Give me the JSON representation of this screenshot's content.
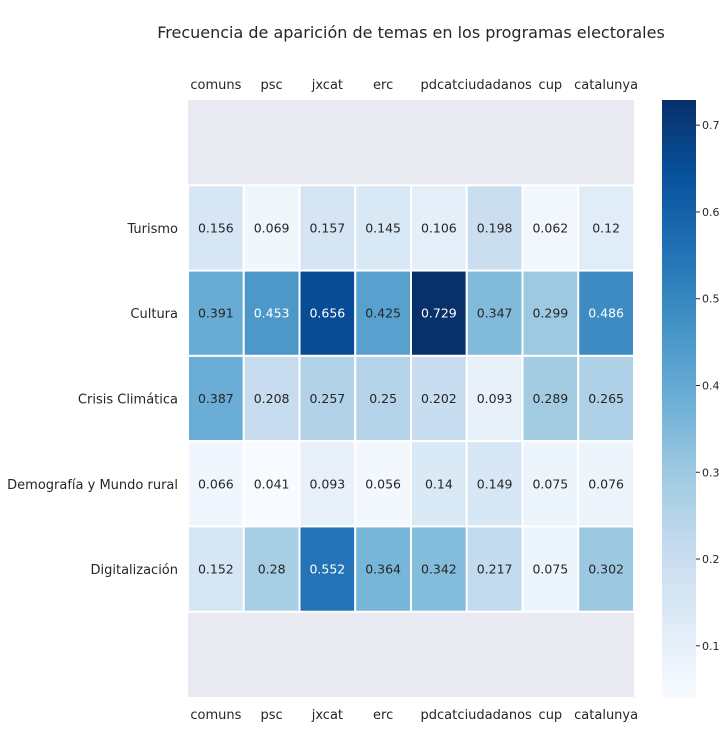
{
  "chart_data": {
    "type": "heatmap",
    "title": "Frecuencia de aparición de temas en los programas electorales",
    "columns": [
      "comuns",
      "psc",
      "jxcat",
      "erc",
      "pdcat",
      "ciudadanos",
      "cup",
      "catalunya"
    ],
    "rows": [
      "Turismo",
      "Cultura",
      "Crisis Climática",
      "Demografía y Mundo rural",
      "Digitalización"
    ],
    "values": [
      [
        0.156,
        0.069,
        0.157,
        0.145,
        0.106,
        0.198,
        0.062,
        0.12
      ],
      [
        0.391,
        0.453,
        0.656,
        0.425,
        0.729,
        0.347,
        0.299,
        0.486
      ],
      [
        0.387,
        0.208,
        0.257,
        0.25,
        0.202,
        0.093,
        0.289,
        0.265
      ],
      [
        0.066,
        0.041,
        0.093,
        0.056,
        0.14,
        0.149,
        0.075,
        0.076
      ],
      [
        0.152,
        0.28,
        0.552,
        0.364,
        0.342,
        0.217,
        0.075,
        0.302
      ]
    ],
    "value_labels": [
      [
        "0.156",
        "0.069",
        "0.157",
        "0.145",
        "0.106",
        "0.198",
        "0.062",
        "0.12"
      ],
      [
        "0.391",
        "0.453",
        "0.656",
        "0.425",
        "0.729",
        "0.347",
        "0.299",
        "0.486"
      ],
      [
        "0.387",
        "0.208",
        "0.257",
        "0.25",
        "0.202",
        "0.093",
        "0.289",
        "0.265"
      ],
      [
        "0.066",
        "0.041",
        "0.093",
        "0.056",
        "0.14",
        "0.149",
        "0.075",
        "0.076"
      ],
      [
        "0.152",
        "0.28",
        "0.552",
        "0.364",
        "0.342",
        "0.217",
        "0.075",
        "0.302"
      ]
    ],
    "colormap": "Blues",
    "vmin": 0.041,
    "vmax": 0.729,
    "colorbar_ticks": [
      0.1,
      0.2,
      0.3,
      0.4,
      0.5,
      0.6,
      0.7
    ],
    "colorbar_tick_labels": [
      "0.1",
      "0.2",
      "0.3",
      "0.4",
      "0.5",
      "0.6",
      "0.7"
    ],
    "column_labels_position": "top and bottom",
    "empty_band_color": "#eaeaf2",
    "grid_line_color": "#ffffff"
  }
}
